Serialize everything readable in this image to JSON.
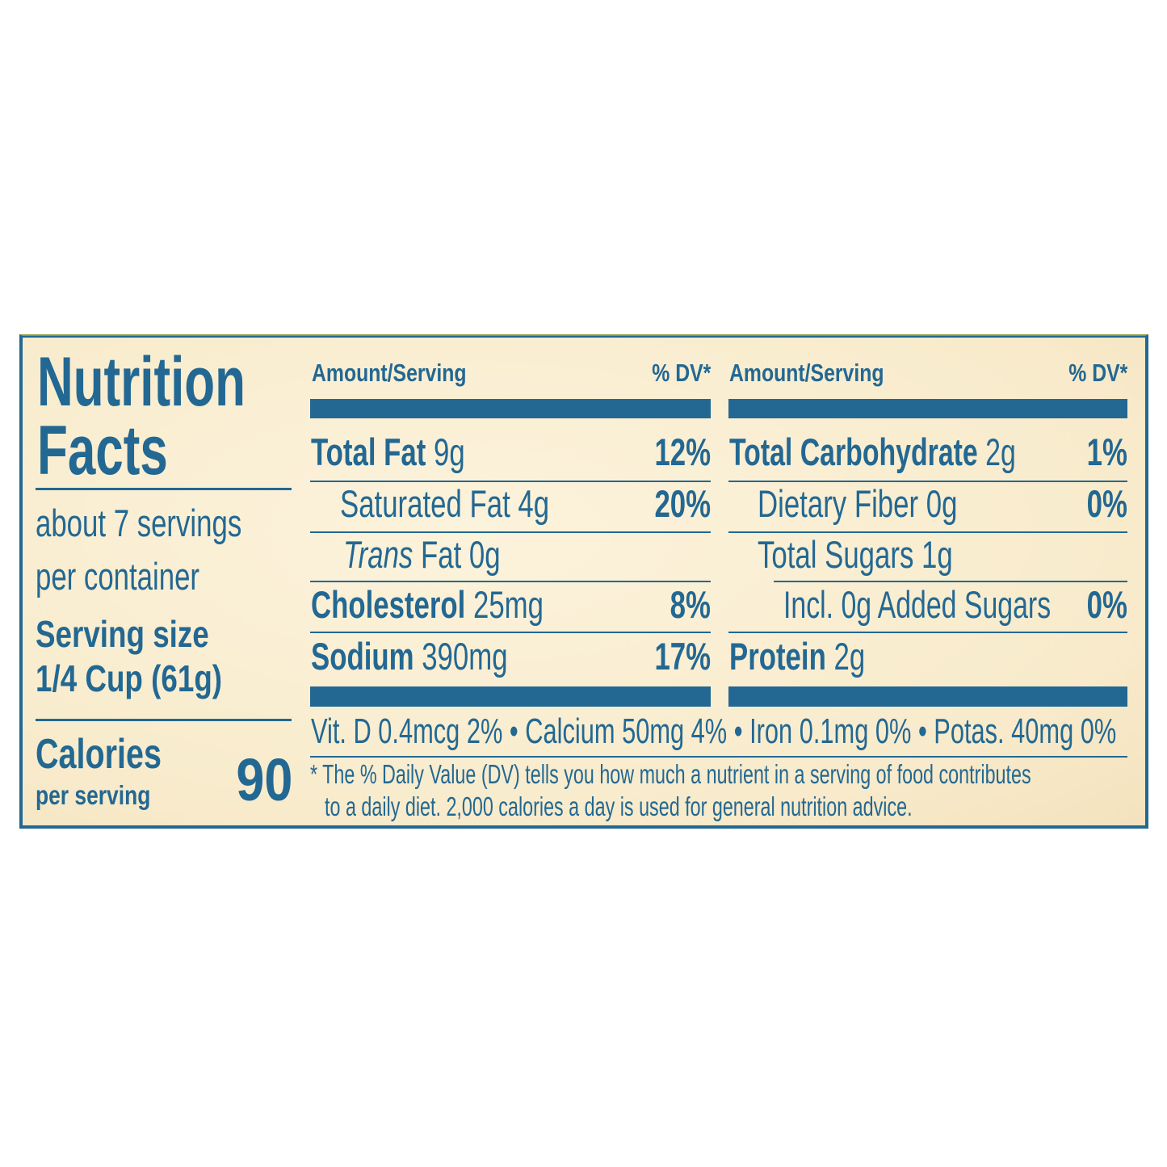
{
  "title": [
    "Nutrition",
    "Facts"
  ],
  "servings": [
    "about 7 servings",
    "per container"
  ],
  "serving_size": {
    "label": "Serving size",
    "value": "1/4 Cup (61g)"
  },
  "calories": {
    "label": "Calories",
    "sub": "per serving",
    "value": "90"
  },
  "header": {
    "amount": "Amount/Serving",
    "dv": "% DV*"
  },
  "left": [
    {
      "name": "Total Fat",
      "amount": "9g",
      "dv": "12%"
    },
    {
      "name": "Saturated Fat",
      "amount": "4g",
      "dv": "20%"
    },
    {
      "name": "Trans",
      "suffix": "Fat 0g",
      "dv": ""
    },
    {
      "name": "Cholesterol",
      "amount": "25mg",
      "dv": "8%"
    },
    {
      "name": "Sodium",
      "amount": "390mg",
      "dv": "17%"
    }
  ],
  "right": [
    {
      "name": "Total Carbohydrate",
      "amount": "2g",
      "dv": "1%"
    },
    {
      "name": "Dietary Fiber",
      "amount": "0g",
      "dv": "0%"
    },
    {
      "name": "Total Sugars",
      "amount": "1g",
      "dv": ""
    },
    {
      "name": "Incl. 0g Added Sugars",
      "amount": "",
      "dv": "0%"
    },
    {
      "name": "Protein",
      "amount": "2g",
      "dv": ""
    }
  ],
  "vitamins": "Vit. D 0.4mcg 2% • Calcium 50mg 4% • Iron 0.1mg 0% • Potas. 40mg 0%",
  "footnote": [
    "* The % Daily Value (DV) tells you how much a nutrient in a serving of food contributes",
    "to a daily diet. 2,000  calories a day is used for general nutrition advice."
  ],
  "colors": {
    "text": "#236892",
    "background": "#f9eed2"
  }
}
